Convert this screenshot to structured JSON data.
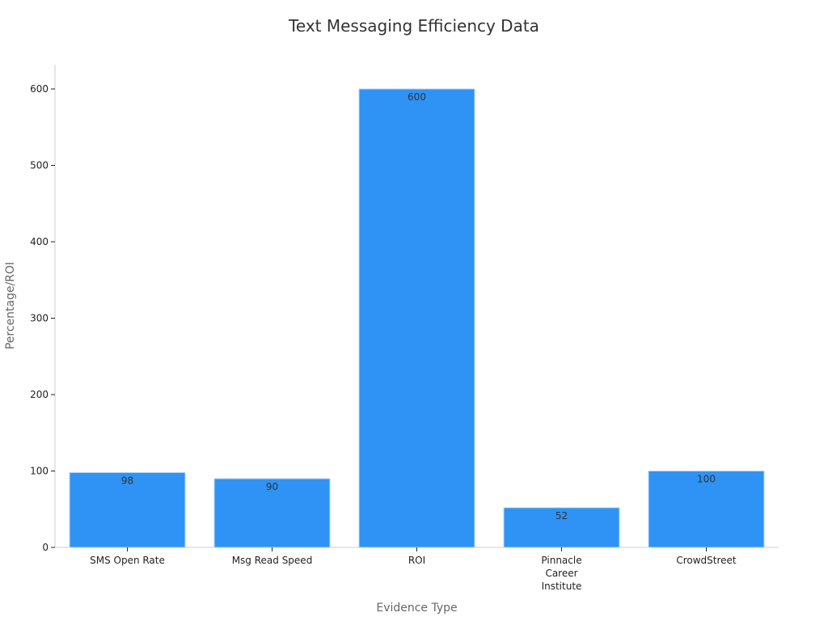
{
  "chart_data": {
    "type": "bar",
    "title": "Text Messaging Efficiency Data",
    "xlabel": "Evidence Type",
    "ylabel": "Percentage/ROI",
    "categories": [
      "SMS Open Rate",
      "Msg Read Speed",
      "ROI",
      "Pinnacle Career Institute",
      "CrowdStreet"
    ],
    "values": [
      98,
      90,
      600,
      52,
      100
    ],
    "data_labels": [
      "98",
      "90",
      "600",
      "52",
      "100"
    ],
    "yticks": [
      0,
      100,
      200,
      300,
      400,
      500,
      600
    ],
    "ylim": [
      0,
      630
    ],
    "grid": false,
    "legend": "none",
    "colors": {
      "bar": "#2e93f5",
      "bar_edge": "#b9d9fb",
      "axis": "#cccccc",
      "tick_text": "#222222",
      "axis_label": "#666666",
      "value_label": "#333333",
      "title": "#333333"
    }
  }
}
